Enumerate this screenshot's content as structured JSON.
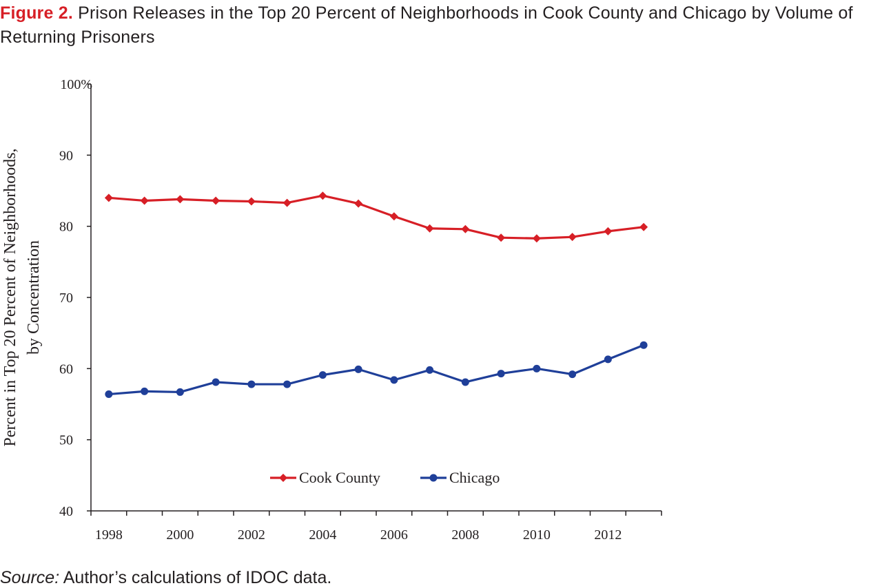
{
  "title": {
    "figure_label": "Figure 2.",
    "text": "Prison Releases in the Top 20 Percent of Neighborhoods in Cook County and Chicago by Volume of Returning Prisoners"
  },
  "source": {
    "label": "Source:",
    "text": "Author’s calculations of IDOC data."
  },
  "chart_data": {
    "type": "line",
    "ylabel_lines": [
      "Percent in Top 20 Percent  of Neighborhoods,",
      "by Concentration"
    ],
    "xlabel": "",
    "ylim": [
      40,
      100
    ],
    "yticks": [
      40,
      50,
      60,
      70,
      80,
      90,
      100
    ],
    "ytick_labels": [
      "40",
      "50",
      "60",
      "70",
      "80",
      "90",
      "100%"
    ],
    "x": [
      1998,
      1999,
      2000,
      2001,
      2002,
      2003,
      2004,
      2005,
      2006,
      2007,
      2008,
      2009,
      2010,
      2011,
      2012,
      2013
    ],
    "xtick_labels": [
      "1998",
      "2000",
      "2002",
      "2004",
      "2006",
      "2008",
      "2010",
      "2012"
    ],
    "xtick_label_years": [
      1998,
      2000,
      2002,
      2004,
      2006,
      2008,
      2010,
      2012
    ],
    "legend_position": "bottom-center",
    "grid": false,
    "series": [
      {
        "name": "Cook County",
        "color": "#d71f26",
        "marker": "diamond",
        "values": [
          84.0,
          83.6,
          83.8,
          83.6,
          83.5,
          83.3,
          84.3,
          83.2,
          81.4,
          79.7,
          79.6,
          78.4,
          78.3,
          78.5,
          79.3,
          79.9
        ]
      },
      {
        "name": "Chicago",
        "color": "#1f3f99",
        "marker": "circle",
        "values": [
          56.4,
          56.8,
          56.7,
          58.1,
          57.8,
          57.8,
          59.1,
          59.9,
          58.4,
          59.8,
          58.1,
          59.3,
          60.0,
          59.2,
          61.3,
          63.3
        ]
      }
    ]
  }
}
